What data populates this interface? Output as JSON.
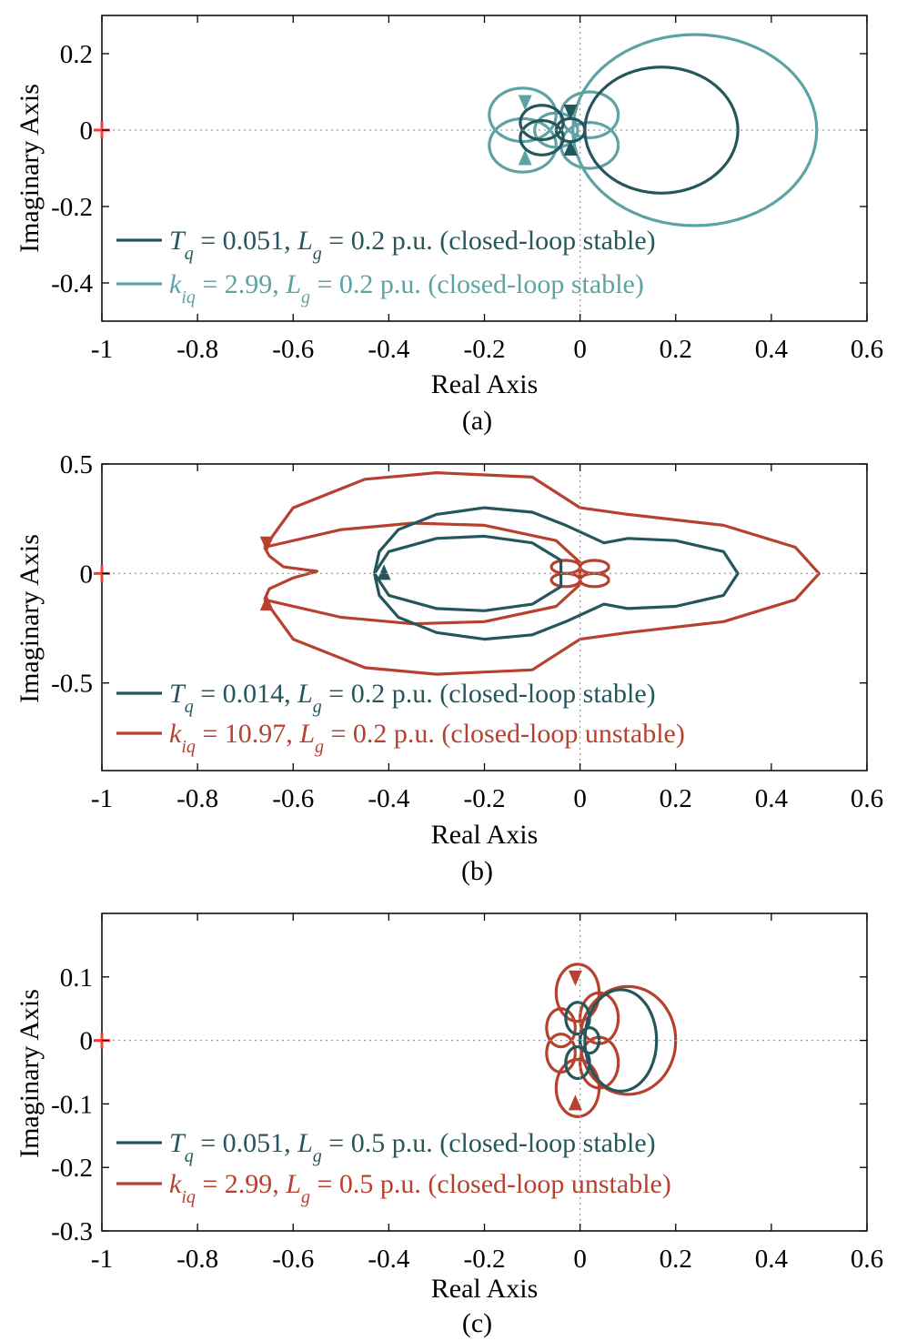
{
  "chart_data": [
    {
      "type": "line",
      "panel_label": "(a)",
      "xlabel": "Real Axis",
      "ylabel": "Imaginary Axis",
      "xlim": [
        -1,
        0.6
      ],
      "ylim": [
        -0.5,
        0.3
      ],
      "xticks": [
        -1,
        -0.8,
        -0.6,
        -0.4,
        -0.2,
        0,
        0.2,
        0.4,
        0.6
      ],
      "xtick_labels": [
        "-1",
        "-0.8",
        "-0.6",
        "-0.4",
        "-0.2",
        "0",
        "0.2",
        "0.4",
        "0.6"
      ],
      "yticks": [
        0.2,
        0,
        -0.2,
        -0.4
      ],
      "ytick_labels": [
        "0.2",
        "0",
        "-0.2",
        "-0.4"
      ],
      "critical_point": {
        "x": -1,
        "y": 0,
        "marker": "+",
        "color": "#ff3b30"
      },
      "series": [
        {
          "name": "Tq = 0.051, Lg = 0.2 p.u. (closed-loop stable)",
          "color": "#24575c",
          "real_range": [
            -0.12,
            0.33
          ],
          "imag_range": [
            -0.165,
            0.165
          ]
        },
        {
          "name": "kiq = 2.99, Lg = 0.2 p.u. (closed-loop stable)",
          "color": "#5da3a3",
          "real_range": [
            -0.19,
            0.5
          ],
          "imag_range": [
            -0.25,
            0.25
          ]
        }
      ],
      "legend": [
        {
          "color": "#24575c",
          "sym1": "T",
          "sub1": "q",
          "val1": " = 0.051, ",
          "sym2": "L",
          "sub2": "g",
          "val2": " = 0.2 p.u. (closed-loop stable)"
        },
        {
          "color": "#5da3a3",
          "sym1": "k",
          "sub1": "iq",
          "val1": " = 2.99, ",
          "sym2": "L",
          "sub2": "g",
          "val2": " = 0.2 p.u. (closed-loop stable)"
        }
      ]
    },
    {
      "type": "line",
      "panel_label": "(b)",
      "xlabel": "Real Axis",
      "ylabel": "Imaginary Axis",
      "xlim": [
        -1,
        0.6
      ],
      "ylim": [
        -0.9,
        0.5
      ],
      "xticks": [
        -1,
        -0.8,
        -0.6,
        -0.4,
        -0.2,
        0,
        0.2,
        0.4,
        0.6
      ],
      "xtick_labels": [
        "-1",
        "-0.8",
        "-0.6",
        "-0.4",
        "-0.2",
        "0",
        "0.2",
        "0.4",
        "0.6"
      ],
      "yticks": [
        0.5,
        0,
        -0.5
      ],
      "ytick_labels": [
        "0.5",
        "0",
        "-0.5"
      ],
      "critical_point": {
        "x": -1,
        "y": 0,
        "marker": "+",
        "color": "#ff3b30"
      },
      "series": [
        {
          "name": "Tq = 0.014, Lg = 0.2 p.u. (closed-loop stable)",
          "color": "#24575c",
          "real_range": [
            -0.43,
            0.33
          ],
          "imag_range": [
            -0.3,
            0.3
          ]
        },
        {
          "name": "kiq = 10.97, Lg = 0.2 p.u. (closed-loop unstable)",
          "color": "#b5412e",
          "real_range": [
            -0.7,
            0.5
          ],
          "imag_range": [
            -0.46,
            0.46
          ]
        }
      ],
      "legend": [
        {
          "color": "#24575c",
          "sym1": "T",
          "sub1": "q",
          "val1": " = 0.014, ",
          "sym2": "L",
          "sub2": "g",
          "val2": " = 0.2 p.u. (closed-loop stable)"
        },
        {
          "color": "#b5412e",
          "sym1": "k",
          "sub1": "iq",
          "val1": " = 10.97, ",
          "sym2": "L",
          "sub2": "g",
          "val2": " = 0.2 p.u. (closed-loop unstable)"
        }
      ]
    },
    {
      "type": "line",
      "panel_label": "(c)",
      "xlabel": "Real Axis",
      "ylabel": "Imaginary Axis",
      "xlim": [
        -1,
        0.6
      ],
      "ylim": [
        -0.3,
        0.2
      ],
      "xticks": [
        -1,
        -0.8,
        -0.6,
        -0.4,
        -0.2,
        0,
        0.2,
        0.4,
        0.6
      ],
      "xtick_labels": [
        "-1",
        "-0.8",
        "-0.6",
        "-0.4",
        "-0.2",
        "0",
        "0.2",
        "0.4",
        "0.6"
      ],
      "yticks": [
        0.1,
        0,
        -0.1,
        -0.2,
        -0.3
      ],
      "ytick_labels": [
        "0.1",
        "0",
        "-0.1",
        "-0.2",
        "-0.3"
      ],
      "critical_point": {
        "x": -1,
        "y": 0,
        "marker": "+",
        "color": "#ff3b30"
      },
      "series": [
        {
          "name": "Tq = 0.051, Lg = 0.5 p.u. (closed-loop stable)",
          "color": "#24575c",
          "real_range": [
            -0.04,
            0.17
          ],
          "imag_range": [
            -0.085,
            0.085
          ]
        },
        {
          "name": "kiq = 2.99, Lg = 0.5 p.u. (closed-loop unstable)",
          "color": "#b5412e",
          "real_range": [
            -0.07,
            0.2
          ],
          "imag_range": [
            -0.11,
            0.11
          ]
        }
      ],
      "legend": [
        {
          "color": "#24575c",
          "sym1": "T",
          "sub1": "q",
          "val1": " = 0.051, ",
          "sym2": "L",
          "sub2": "g",
          "val2": " = 0.5 p.u. (closed-loop stable)"
        },
        {
          "color": "#b5412e",
          "sym1": "k",
          "sub1": "iq",
          "val1": " = 2.99, ",
          "sym2": "L",
          "sub2": "g",
          "val2": " = 0.5 p.u. (closed-loop unstable)"
        }
      ]
    }
  ]
}
